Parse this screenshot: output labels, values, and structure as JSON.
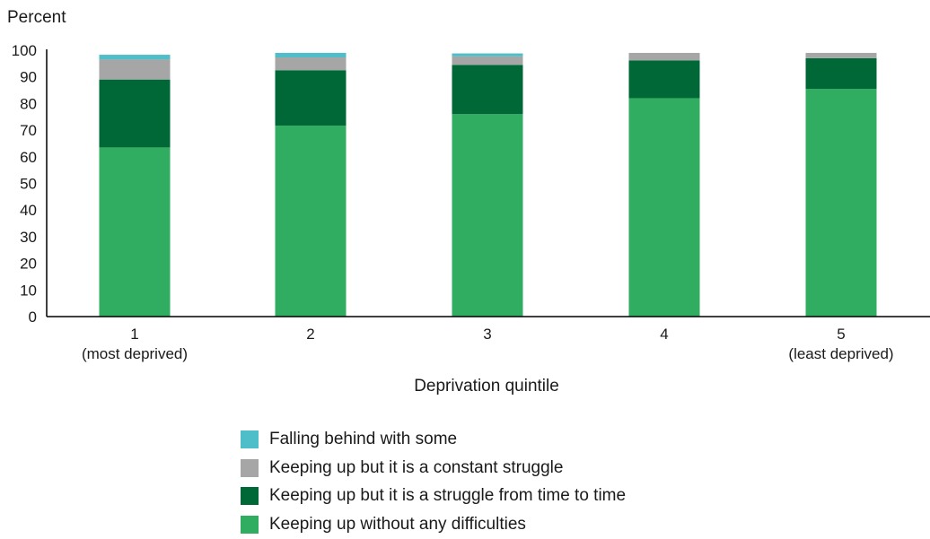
{
  "chart_data": {
    "type": "bar",
    "stacked": true,
    "ylabel": "Percent",
    "xlabel": "Deprivation quintile",
    "ylim": [
      0,
      100
    ],
    "yticks": [
      0,
      10,
      20,
      30,
      40,
      50,
      60,
      70,
      80,
      90,
      100
    ],
    "grid": false,
    "legend_position": "bottom",
    "categories": [
      {
        "label": "1",
        "sublabel": "(most deprived)"
      },
      {
        "label": "2",
        "sublabel": ""
      },
      {
        "label": "3",
        "sublabel": ""
      },
      {
        "label": "4",
        "sublabel": ""
      },
      {
        "label": "5",
        "sublabel": "(least deprived)"
      }
    ],
    "series": [
      {
        "name": "Keeping up without any difficulties",
        "color": "#31ad62",
        "values": [
          63.5,
          71.7,
          76.0,
          82.0,
          85.5
        ]
      },
      {
        "name": "Keeping up but it is a struggle from time to time",
        "color": "#006837",
        "values": [
          25.5,
          20.8,
          18.5,
          14.2,
          11.5
        ]
      },
      {
        "name": "Keeping up but it is a constant struggle",
        "color": "#a6a6a6",
        "values": [
          7.5,
          4.8,
          3.2,
          2.8,
          2.0
        ]
      },
      {
        "name": "Falling behind with some",
        "color": "#4fbec9",
        "values": [
          1.8,
          1.7,
          1.1,
          0,
          0
        ]
      }
    ]
  }
}
